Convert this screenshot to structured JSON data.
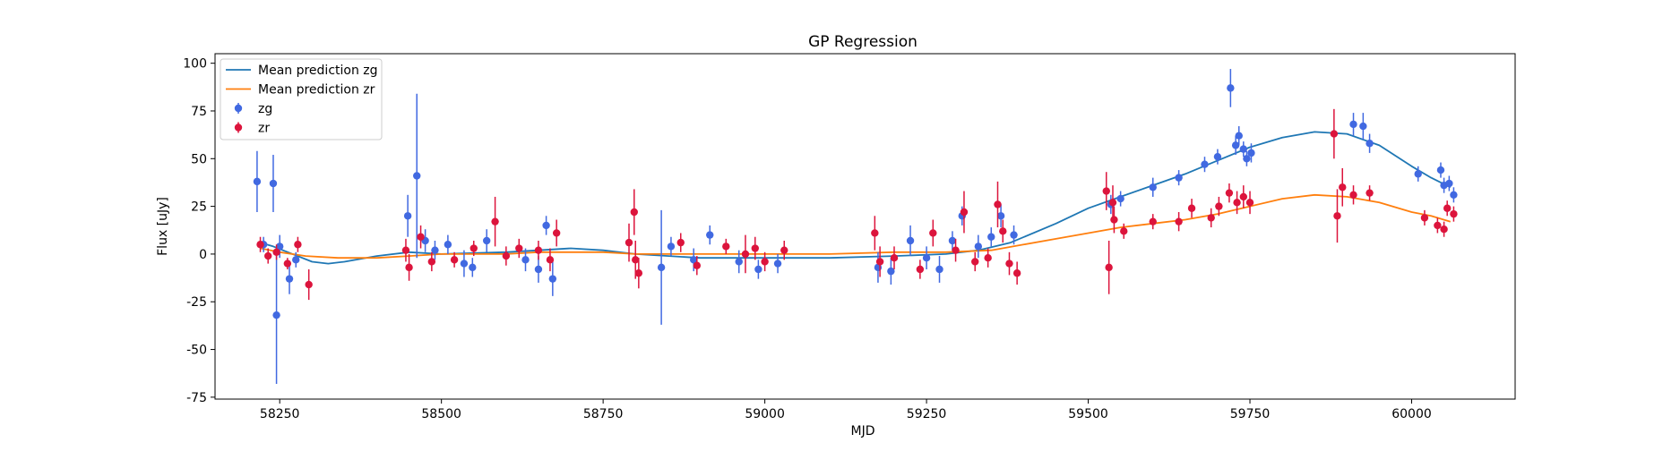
{
  "chart_data": {
    "type": "scatter",
    "title": "GP Regression",
    "xlabel": "MJD",
    "ylabel": "Flux [uJy]",
    "xlim": [
      58150,
      60160
    ],
    "ylim": [
      -76,
      105
    ],
    "xticks": [
      58250,
      58500,
      58750,
      59000,
      59250,
      59500,
      59750,
      60000
    ],
    "yticks": [
      -75,
      -50,
      -25,
      0,
      25,
      50,
      75,
      100
    ],
    "legend_position": "top-left",
    "grid": false,
    "colors": {
      "zg_line": "#1f77b4",
      "zr_line": "#ff7f0e",
      "zg_points": "#4169e1",
      "zr_points": "#dc143c"
    },
    "series": [
      {
        "name": "Mean prediction zg",
        "kind": "line",
        "color": "#1f77b4",
        "points": [
          [
            58220,
            6
          ],
          [
            58240,
            4
          ],
          [
            58270,
            0
          ],
          [
            58300,
            -4
          ],
          [
            58325,
            -5
          ],
          [
            58350,
            -4
          ],
          [
            58400,
            -1
          ],
          [
            58450,
            1
          ],
          [
            58500,
            0
          ],
          [
            58600,
            1
          ],
          [
            58650,
            2
          ],
          [
            58700,
            3
          ],
          [
            58750,
            2
          ],
          [
            58800,
            0
          ],
          [
            58900,
            -2
          ],
          [
            59000,
            -2
          ],
          [
            59100,
            -2
          ],
          [
            59200,
            -1
          ],
          [
            59280,
            0
          ],
          [
            59330,
            2
          ],
          [
            59380,
            6
          ],
          [
            59450,
            16
          ],
          [
            59500,
            24
          ],
          [
            59550,
            30
          ],
          [
            59600,
            36
          ],
          [
            59650,
            42
          ],
          [
            59700,
            49
          ],
          [
            59750,
            56
          ],
          [
            59800,
            61
          ],
          [
            59850,
            64
          ],
          [
            59900,
            63
          ],
          [
            59950,
            57
          ],
          [
            60000,
            46
          ],
          [
            60030,
            40
          ],
          [
            60060,
            35
          ]
        ]
      },
      {
        "name": "Mean prediction zr",
        "kind": "line",
        "color": "#ff7f0e",
        "points": [
          [
            58220,
            3
          ],
          [
            58250,
            1
          ],
          [
            58290,
            -1
          ],
          [
            58340,
            -2
          ],
          [
            58400,
            -2
          ],
          [
            58450,
            -1
          ],
          [
            58500,
            0
          ],
          [
            58600,
            0
          ],
          [
            58650,
            1
          ],
          [
            58700,
            1
          ],
          [
            58750,
            1
          ],
          [
            58800,
            0
          ],
          [
            58900,
            0
          ],
          [
            59000,
            0
          ],
          [
            59100,
            0
          ],
          [
            59200,
            1
          ],
          [
            59280,
            1
          ],
          [
            59350,
            2
          ],
          [
            59400,
            5
          ],
          [
            59450,
            8
          ],
          [
            59500,
            11
          ],
          [
            59550,
            14
          ],
          [
            59600,
            16
          ],
          [
            59650,
            18
          ],
          [
            59700,
            21
          ],
          [
            59750,
            25
          ],
          [
            59800,
            29
          ],
          [
            59850,
            31
          ],
          [
            59900,
            30
          ],
          [
            59950,
            27
          ],
          [
            60000,
            22
          ],
          [
            60030,
            20
          ],
          [
            60060,
            17
          ]
        ]
      },
      {
        "name": "zg",
        "kind": "errorbar",
        "color": "#4169e1",
        "points": [
          [
            58215,
            38,
            16
          ],
          [
            58225,
            5,
            4
          ],
          [
            58240,
            37,
            15
          ],
          [
            58245,
            -32,
            36
          ],
          [
            58250,
            4,
            6
          ],
          [
            58265,
            -13,
            8
          ],
          [
            58275,
            -3,
            4
          ],
          [
            58448,
            20,
            11
          ],
          [
            58462,
            41,
            43
          ],
          [
            58475,
            7,
            6
          ],
          [
            58490,
            2,
            5
          ],
          [
            58510,
            5,
            5
          ],
          [
            58535,
            -5,
            7
          ],
          [
            58548,
            -7,
            5
          ],
          [
            58570,
            7,
            6
          ],
          [
            58630,
            -3,
            6
          ],
          [
            58650,
            -8,
            7
          ],
          [
            58662,
            15,
            5
          ],
          [
            58672,
            -13,
            9
          ],
          [
            58840,
            -7,
            30
          ],
          [
            58855,
            4,
            5
          ],
          [
            58890,
            -3,
            6
          ],
          [
            58915,
            10,
            5
          ],
          [
            58960,
            -4,
            6
          ],
          [
            58990,
            -8,
            5
          ],
          [
            59020,
            -5,
            5
          ],
          [
            59175,
            -7,
            8
          ],
          [
            59195,
            -9,
            7
          ],
          [
            59225,
            7,
            8
          ],
          [
            59250,
            -2,
            6
          ],
          [
            59270,
            -8,
            7
          ],
          [
            59290,
            7,
            5
          ],
          [
            59305,
            20,
            5
          ],
          [
            59330,
            4,
            6
          ],
          [
            59350,
            9,
            5
          ],
          [
            59365,
            20,
            6
          ],
          [
            59385,
            10,
            5
          ],
          [
            59535,
            26,
            5
          ],
          [
            59550,
            29,
            4
          ],
          [
            59600,
            35,
            5
          ],
          [
            59640,
            40,
            4
          ],
          [
            59680,
            47,
            4
          ],
          [
            59700,
            51,
            4
          ],
          [
            59720,
            87,
            10
          ],
          [
            59728,
            57,
            5
          ],
          [
            59733,
            62,
            5
          ],
          [
            59740,
            55,
            4
          ],
          [
            59745,
            50,
            4
          ],
          [
            59752,
            53,
            5
          ],
          [
            59910,
            68,
            6
          ],
          [
            59925,
            67,
            7
          ],
          [
            59935,
            58,
            5
          ],
          [
            60010,
            42,
            4
          ],
          [
            60045,
            44,
            4
          ],
          [
            60050,
            36,
            4
          ],
          [
            60058,
            37,
            4
          ],
          [
            60065,
            31,
            4
          ]
        ]
      },
      {
        "name": "zr",
        "kind": "errorbar",
        "color": "#dc143c",
        "points": [
          [
            58220,
            5,
            4
          ],
          [
            58232,
            -1,
            4
          ],
          [
            58245,
            1,
            4
          ],
          [
            58262,
            -5,
            3
          ],
          [
            58278,
            5,
            4
          ],
          [
            58295,
            -16,
            8
          ],
          [
            58445,
            2,
            6
          ],
          [
            58450,
            -7,
            7
          ],
          [
            58468,
            9,
            6
          ],
          [
            58485,
            -4,
            5
          ],
          [
            58520,
            -3,
            4
          ],
          [
            58550,
            3,
            4
          ],
          [
            58583,
            17,
            13
          ],
          [
            58600,
            -1,
            5
          ],
          [
            58620,
            3,
            5
          ],
          [
            58650,
            2,
            5
          ],
          [
            58668,
            -3,
            6
          ],
          [
            58678,
            11,
            7
          ],
          [
            58790,
            6,
            10
          ],
          [
            58798,
            22,
            12
          ],
          [
            58800,
            -3,
            10
          ],
          [
            58805,
            -10,
            8
          ],
          [
            58870,
            6,
            5
          ],
          [
            58895,
            -6,
            5
          ],
          [
            58940,
            4,
            4
          ],
          [
            58970,
            0,
            10
          ],
          [
            58985,
            3,
            6
          ],
          [
            59000,
            -4,
            5
          ],
          [
            59030,
            2,
            5
          ],
          [
            59170,
            11,
            9
          ],
          [
            59178,
            -4,
            8
          ],
          [
            59200,
            -2,
            6
          ],
          [
            59240,
            -8,
            5
          ],
          [
            59260,
            11,
            7
          ],
          [
            59295,
            2,
            6
          ],
          [
            59308,
            22,
            11
          ],
          [
            59325,
            -4,
            5
          ],
          [
            59345,
            -2,
            5
          ],
          [
            59360,
            26,
            12
          ],
          [
            59368,
            12,
            6
          ],
          [
            59378,
            -5,
            6
          ],
          [
            59390,
            -10,
            6
          ],
          [
            59528,
            33,
            10
          ],
          [
            59532,
            -7,
            14
          ],
          [
            59538,
            27,
            9
          ],
          [
            59540,
            18,
            7
          ],
          [
            59555,
            12,
            4
          ],
          [
            59600,
            17,
            4
          ],
          [
            59640,
            17,
            5
          ],
          [
            59660,
            24,
            5
          ],
          [
            59690,
            19,
            5
          ],
          [
            59702,
            25,
            5
          ],
          [
            59718,
            32,
            5
          ],
          [
            59730,
            27,
            6
          ],
          [
            59740,
            30,
            6
          ],
          [
            59750,
            27,
            6
          ],
          [
            59880,
            63,
            13
          ],
          [
            59885,
            20,
            14
          ],
          [
            59893,
            35,
            10
          ],
          [
            59910,
            31,
            5
          ],
          [
            59935,
            32,
            4
          ],
          [
            60020,
            19,
            4
          ],
          [
            60040,
            15,
            4
          ],
          [
            60050,
            13,
            4
          ],
          [
            60055,
            24,
            4
          ],
          [
            60065,
            21,
            4
          ]
        ]
      }
    ]
  }
}
